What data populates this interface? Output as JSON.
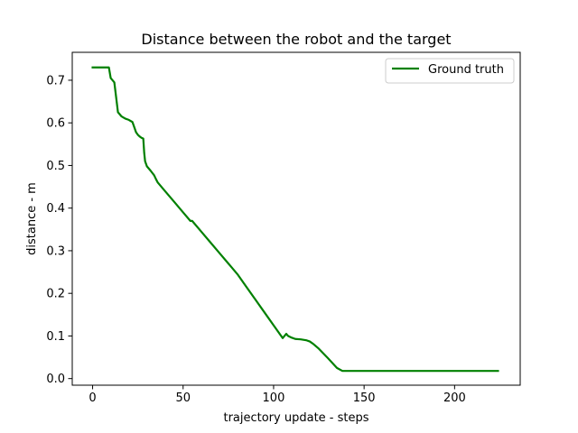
{
  "chart_data": {
    "type": "line",
    "title": "Distance between the robot and the target",
    "xlabel": "trajectory update - steps",
    "ylabel": "distance - m",
    "xlim": [
      -11.25,
      236.25
    ],
    "ylim": [
      -0.0155,
      0.7655
    ],
    "xticks": [
      0,
      50,
      100,
      150,
      200
    ],
    "yticks": [
      0.0,
      0.1,
      0.2,
      0.3,
      0.4,
      0.5,
      0.6,
      0.7
    ],
    "xtick_labels": [
      "0",
      "50",
      "100",
      "150",
      "200"
    ],
    "ytick_labels": [
      "0.0",
      "0.1",
      "0.2",
      "0.3",
      "0.4",
      "0.5",
      "0.6",
      "0.7"
    ],
    "grid": false,
    "legend": {
      "position": "top-right"
    },
    "series": [
      {
        "name": "Ground truth",
        "color": "#008000",
        "x": [
          0,
          9,
          10,
          11,
          12,
          13,
          14,
          15,
          16,
          18,
          20,
          22,
          23,
          24,
          25,
          26,
          27,
          28,
          28.5,
          29,
          30,
          32,
          34,
          35,
          36,
          40,
          45,
          50,
          54,
          55,
          60,
          65,
          70,
          75,
          76,
          77,
          78,
          79,
          80,
          85,
          90,
          95,
          100,
          105,
          107,
          108,
          110,
          112,
          115,
          118,
          120,
          122,
          125,
          130,
          135,
          138,
          139,
          150,
          175,
          200,
          224
        ],
        "y": [
          0.73,
          0.73,
          0.705,
          0.7,
          0.695,
          0.66,
          0.625,
          0.62,
          0.615,
          0.61,
          0.607,
          0.602,
          0.59,
          0.578,
          0.572,
          0.568,
          0.565,
          0.563,
          0.53,
          0.51,
          0.498,
          0.488,
          0.477,
          0.468,
          0.46,
          0.44,
          0.415,
          0.39,
          0.37,
          0.37,
          0.345,
          0.32,
          0.295,
          0.27,
          0.265,
          0.26,
          0.255,
          0.25,
          0.245,
          0.215,
          0.185,
          0.155,
          0.125,
          0.095,
          0.105,
          0.1,
          0.096,
          0.093,
          0.092,
          0.09,
          0.087,
          0.081,
          0.07,
          0.048,
          0.025,
          0.018,
          0.018,
          0.018,
          0.018,
          0.018,
          0.018
        ]
      }
    ]
  }
}
